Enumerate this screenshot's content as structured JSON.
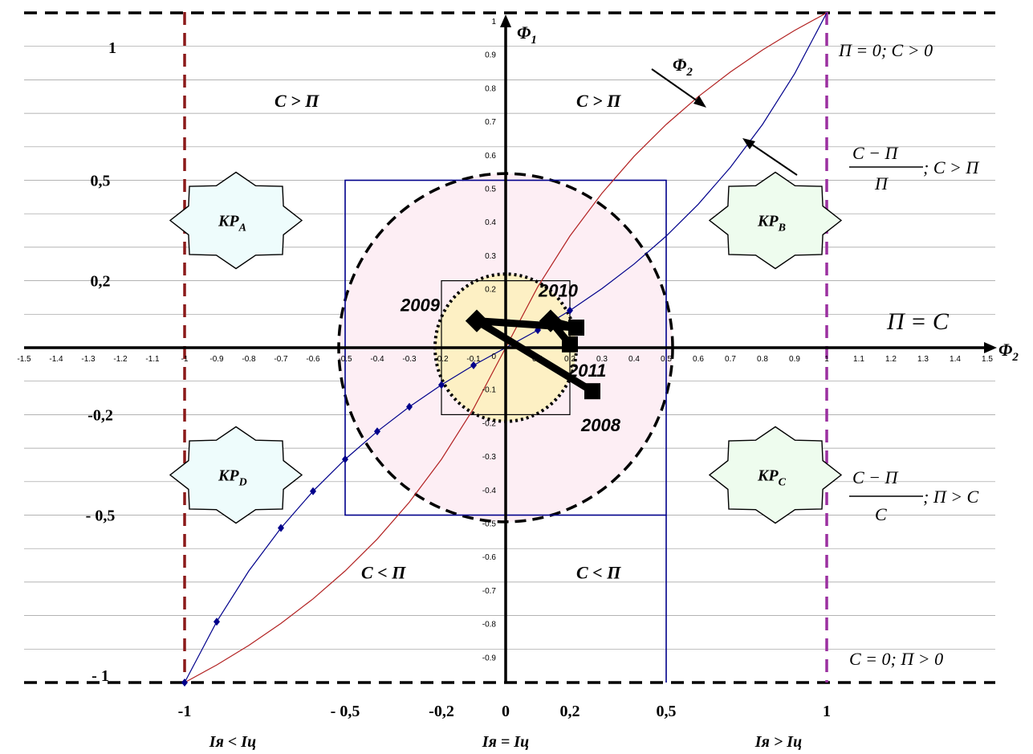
{
  "chart_data": {
    "type": "line",
    "title": "",
    "xlabel": "Φ2",
    "ylabel": "Φ1",
    "xlim": [
      -1.5,
      1.5
    ],
    "ylim": [
      -1,
      1
    ],
    "x_ticks": [
      "-1.5",
      "-1.4",
      "-1.3",
      "-1.2",
      "-1.1",
      "-1",
      "-0.9",
      "-0.8",
      "-0.7",
      "-0.6",
      "-0.5",
      "-0.4",
      "-0.3",
      "-0.2",
      "-0.1",
      "0",
      "0.1",
      "0.2",
      "0.3",
      "0.4",
      "0.5",
      "0.6",
      "0.7",
      "0.8",
      "0.9",
      "1",
      "1.1",
      "1.2",
      "1.3",
      "1.4",
      "1.5"
    ],
    "y_ticks": [
      "1",
      "0.9",
      "0.8",
      "0.7",
      "0.6",
      "0.5",
      "0.4",
      "0.3",
      "0.2",
      "0.1",
      "0",
      "-0.1",
      "-0.2",
      "-0.3",
      "-0.4",
      "-0.5",
      "-0.6",
      "-0.7",
      "-0.8",
      "-0.9"
    ],
    "bottom_ticks": [
      {
        "x": -1,
        "label": "-1"
      },
      {
        "x": -0.5,
        "label": "- 0,5"
      },
      {
        "x": -0.2,
        "label": "-0,2"
      },
      {
        "x": 0,
        "label": "0"
      },
      {
        "x": 0.2,
        "label": "0,2"
      },
      {
        "x": 0.5,
        "label": "0,5"
      },
      {
        "x": 1,
        "label": "1"
      }
    ],
    "left_labels": [
      {
        "y": 1,
        "label": "1"
      },
      {
        "y": 0.5,
        "label": "0,5"
      },
      {
        "y": 0.2,
        "label": "0,2"
      },
      {
        "y": -0.2,
        "label": "-0,2"
      },
      {
        "y": -0.5,
        "label": "- 0,5"
      },
      {
        "y": -1,
        "label": "- 1"
      }
    ],
    "series": [
      {
        "name": "Φ2",
        "color": "#b22222",
        "x": [
          -1,
          -0.9,
          -0.8,
          -0.7,
          -0.6,
          -0.5,
          -0.4,
          -0.3,
          -0.2,
          -0.1,
          0,
          0.1,
          0.2,
          0.3,
          0.4,
          0.5,
          0.6,
          0.7,
          0.8,
          0.9,
          1
        ],
        "y": [
          -1,
          -0.9474,
          -0.8889,
          -0.8235,
          -0.75,
          -0.6667,
          -0.5714,
          -0.4615,
          -0.3333,
          -0.1818,
          0,
          0.1818,
          0.3333,
          0.4615,
          0.5714,
          0.6667,
          0.75,
          0.8235,
          0.8889,
          0.9474,
          1
        ]
      },
      {
        "name": "(C − П)/П",
        "color": "#00008b",
        "x": [
          -1,
          -0.9,
          -0.8,
          -0.7,
          -0.6,
          -0.5,
          -0.4,
          -0.3,
          -0.2,
          -0.1,
          0,
          0.1,
          0.2,
          0.3,
          0.4,
          0.5,
          0.6,
          0.7,
          0.8,
          0.9,
          1
        ],
        "y": [
          -1,
          -0.8182,
          -0.6667,
          -0.5385,
          -0.4286,
          -0.3333,
          -0.25,
          -0.1765,
          -0.1111,
          -0.0526,
          0,
          0.0526,
          0.1111,
          0.1765,
          0.25,
          0.3333,
          0.4286,
          0.5385,
          0.6667,
          0.8182,
          1
        ],
        "markers_x": [
          -1,
          -0.9,
          -0.7,
          -0.6,
          -0.5,
          -0.4,
          -0.3,
          -0.2,
          -0.1,
          0.1,
          0.2
        ],
        "markers_y": [
          -1,
          -0.8182,
          -0.5385,
          -0.4286,
          -0.3333,
          -0.25,
          -0.1765,
          -0.1111,
          -0.0526,
          0.0526,
          0.1111
        ]
      }
    ],
    "trajectory": {
      "name": "2008–2011",
      "x": [
        0.27,
        -0.09,
        0.22,
        0.14,
        0.2
      ],
      "y": [
        -0.13,
        0.08,
        0.06,
        0.08,
        0.01
      ],
      "labels": [
        {
          "x": 0.27,
          "y": -0.13,
          "text": "2008"
        },
        {
          "x": -0.09,
          "y": 0.08,
          "text": "2009"
        },
        {
          "x": 0.14,
          "y": 0.08,
          "text": "2010"
        },
        {
          "x": 0.2,
          "y": 0.01,
          "text": "2011"
        }
      ]
    },
    "squares": [
      {
        "x0": -0.5,
        "x1": 0.5,
        "y0": -0.5,
        "y1": 0.5,
        "color": "#00008b"
      },
      {
        "x0": -0.2,
        "x1": 0.2,
        "y0": -0.2,
        "y1": 0.2,
        "color": "#000000"
      }
    ],
    "circles": [
      {
        "cx": 0,
        "cy": 0,
        "r": 0.52,
        "style": "dashed",
        "fill": "#fdeef4"
      },
      {
        "cx": 0,
        "cy": 0,
        "r": 0.22,
        "style": "dotted",
        "fill": "#fdf0c4"
      }
    ],
    "boundaries": [
      {
        "axis": "y",
        "value": 1,
        "color": "#000000"
      },
      {
        "axis": "y",
        "value": -1,
        "color": "#000000"
      },
      {
        "axis": "x",
        "value": -1,
        "color": "#8b1a1a"
      },
      {
        "axis": "x",
        "value": 1,
        "color": "#9b30a0"
      }
    ],
    "regions": [
      {
        "name": "KP_A",
        "text": "KP",
        "sub": "A",
        "x": -0.84,
        "y": 0.38,
        "fill": "#eefcfc"
      },
      {
        "name": "KP_B",
        "text": "KP",
        "sub": "B",
        "x": 0.84,
        "y": 0.38,
        "fill": "#eefcee"
      },
      {
        "name": "KP_D",
        "text": "KP",
        "sub": "D",
        "x": -0.84,
        "y": -0.38,
        "fill": "#eefcfc"
      },
      {
        "name": "KP_C",
        "text": "KP",
        "sub": "C",
        "x": 0.84,
        "y": -0.38,
        "fill": "#eefcee"
      }
    ],
    "conditions": [
      {
        "text": "C  > П",
        "x": -0.72,
        "y": 0.72
      },
      {
        "text": "C  > П",
        "x": 0.22,
        "y": 0.72
      },
      {
        "text": "C  <  П",
        "x": -0.45,
        "y": -0.69
      },
      {
        "text": "C  <  П",
        "x": 0.22,
        "y": -0.69
      }
    ],
    "right_notes": {
      "top": "П = 0;  C > 0",
      "fraction_top_num": "C − П",
      "fraction_top_den": "П",
      "fraction_top_cond": "; C > П",
      "middle": "П  =  C",
      "fraction_bottom_num": "C − П",
      "fraction_bottom_den": "C",
      "fraction_bottom_cond": "; П > C",
      "bottom": "C = 0;  П > 0"
    },
    "bottom_notes": [
      {
        "text": "Iя  <  Iц",
        "x": -0.85
      },
      {
        "text": "Iя  =  Iц",
        "x": 0
      },
      {
        "text": "Iя  >  Iц",
        "x": 0.85
      }
    ],
    "phi2_label": "Φ2"
  }
}
